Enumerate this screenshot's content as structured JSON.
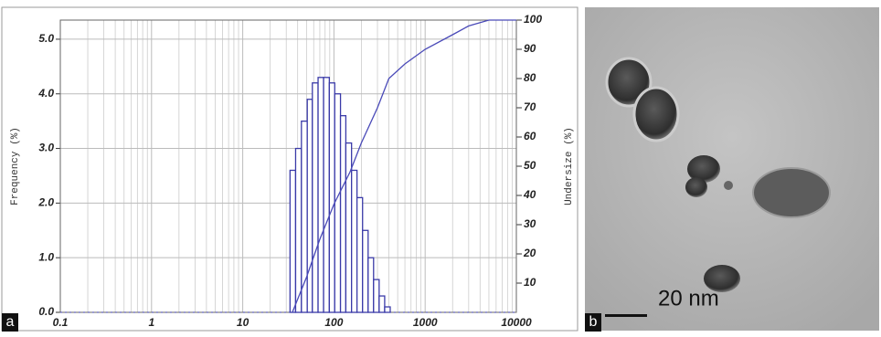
{
  "chart_data": {
    "type": "histogram",
    "panel_label": "a",
    "ylabel": "Frequency (%)",
    "y2label": "Undersize (%)",
    "log_x": true,
    "grid": true,
    "color": "#3a3aa8",
    "bins": [
      33,
      38,
      44,
      51,
      58,
      67,
      77,
      89,
      102,
      118,
      135,
      156,
      179,
      206,
      237,
      272,
      313,
      360,
      414
    ],
    "values": [
      2.6,
      3.0,
      3.5,
      3.9,
      4.2,
      4.3,
      4.3,
      4.2,
      4.0,
      3.6,
      3.1,
      2.6,
      2.1,
      1.5,
      1.0,
      0.6,
      0.3,
      0.1
    ],
    "cumulative": {
      "color": "#4a4ab8",
      "axis": "y2",
      "x": [
        35,
        50,
        70,
        100,
        150,
        200,
        300,
        400,
        600,
        1000,
        2000,
        3000,
        5000,
        10000
      ],
      "values": [
        0,
        12,
        25,
        37,
        48,
        58,
        70,
        80,
        85,
        90,
        95,
        98,
        100,
        100
      ]
    },
    "xlim": [
      0.1,
      10000
    ],
    "xticks": [
      0.1,
      1,
      10,
      100,
      1000,
      10000
    ],
    "ylim": [
      0,
      5.35
    ],
    "yticks": [
      {
        "value": 0,
        "label": "0.0"
      },
      {
        "value": 1,
        "label": "1.0"
      },
      {
        "value": 2,
        "label": "2.0"
      },
      {
        "value": 3,
        "label": "3.0"
      },
      {
        "value": 4,
        "label": "4.0"
      },
      {
        "value": 5,
        "label": "5.0"
      }
    ],
    "y2lim": [
      0,
      100
    ],
    "y2ticks": [
      10,
      20,
      30,
      40,
      50,
      60,
      70,
      80,
      90,
      100
    ]
  },
  "image_panel": {
    "panel_label": "b",
    "scale_bar": "20 nm"
  }
}
